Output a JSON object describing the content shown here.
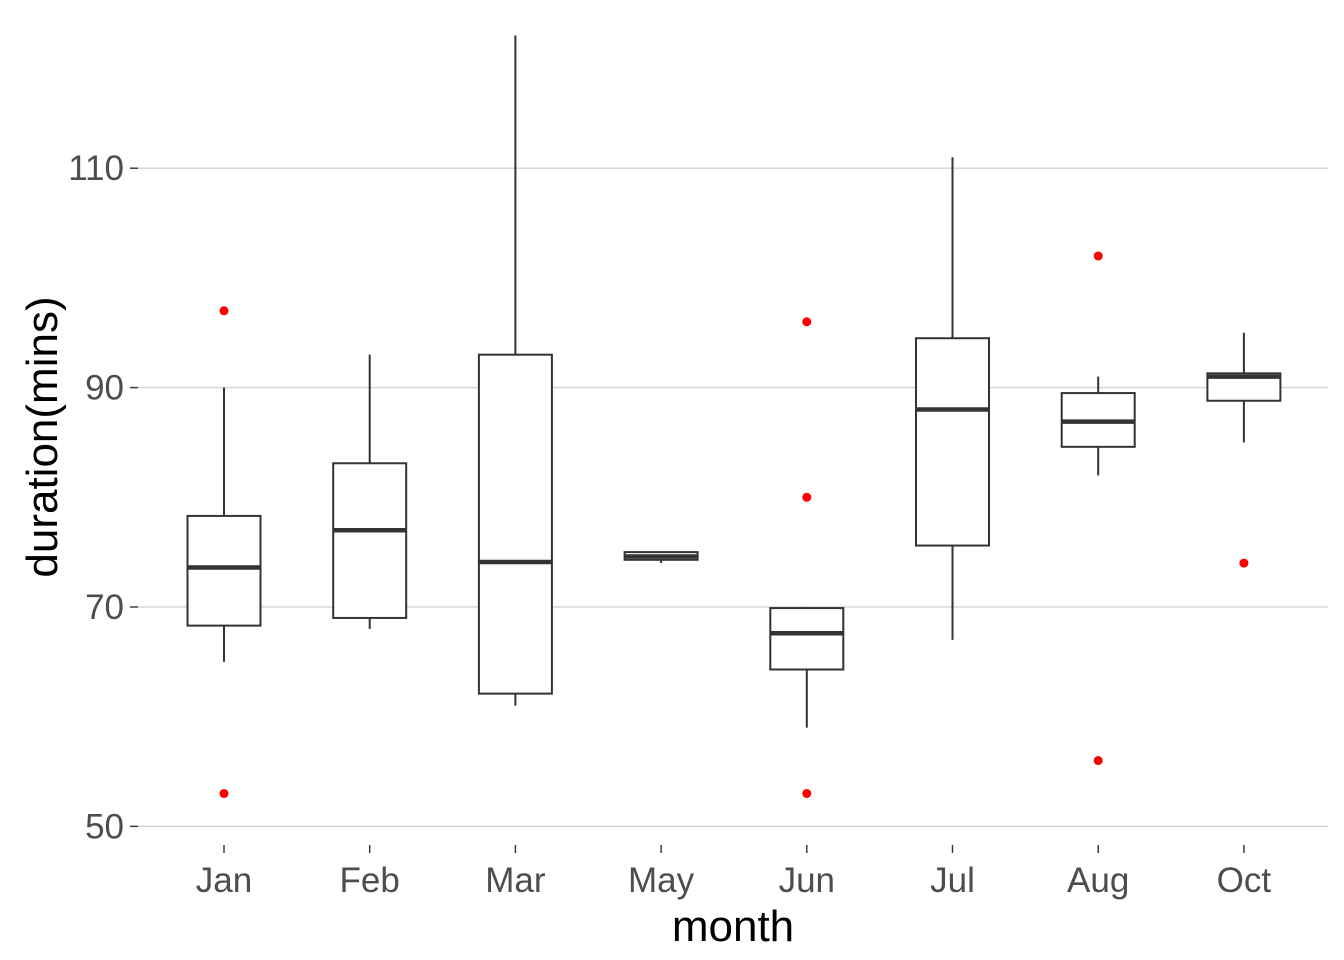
{
  "chart_data": {
    "type": "boxplot",
    "xlabel": "month",
    "ylabel": "duration(mins)",
    "ylim": [
      48.3,
      122.6
    ],
    "yticks": [
      50,
      70,
      90,
      110
    ],
    "grid": "horizontal major lines",
    "outlier_color": "#ff0000",
    "categories": [
      "Jan",
      "Feb",
      "Mar",
      "May",
      "Jun",
      "Jul",
      "Aug",
      "Oct"
    ],
    "boxes": [
      {
        "category": "Jan",
        "whisker_low": 65,
        "q1": 68.3,
        "median": 73.6,
        "q3": 78.3,
        "whisker_high": 90,
        "outliers": [
          97,
          53
        ]
      },
      {
        "category": "Feb",
        "whisker_low": 68,
        "q1": 69,
        "median": 77,
        "q3": 83.1,
        "whisker_high": 93,
        "outliers": []
      },
      {
        "category": "Mar",
        "whisker_low": 61,
        "q1": 62.1,
        "median": 74.1,
        "q3": 93,
        "whisker_high": 122.1,
        "outliers": []
      },
      {
        "category": "May",
        "whisker_low": 74,
        "q1": 74.3,
        "median": 74.6,
        "q3": 75,
        "whisker_high": 75,
        "outliers": []
      },
      {
        "category": "Jun",
        "whisker_low": 59,
        "q1": 64.3,
        "median": 67.6,
        "q3": 69.9,
        "whisker_high": 70,
        "outliers": [
          96,
          80,
          53
        ]
      },
      {
        "category": "Jul",
        "whisker_low": 67,
        "q1": 75.6,
        "median": 88,
        "q3": 94.5,
        "whisker_high": 111,
        "outliers": []
      },
      {
        "category": "Aug",
        "whisker_low": 82,
        "q1": 84.6,
        "median": 86.9,
        "q3": 89.5,
        "whisker_high": 91,
        "outliers": [
          102,
          56
        ]
      },
      {
        "category": "Oct",
        "whisker_low": 85,
        "q1": 88.8,
        "median": 91,
        "q3": 91.3,
        "whisker_high": 95,
        "outliers": [
          74
        ]
      }
    ]
  }
}
